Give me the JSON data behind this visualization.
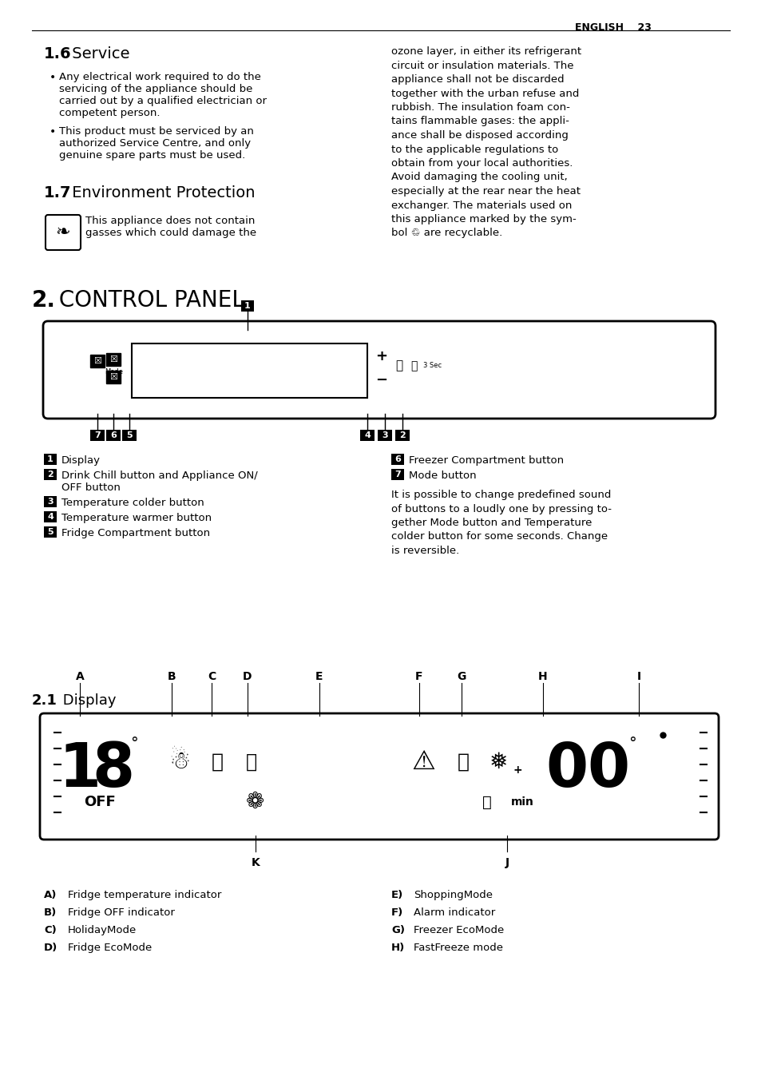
{
  "page_bg": "#ffffff",
  "header_right": "ENGLISH    23",
  "section_1_6_title_bold": "1.6",
  "section_1_6_title_normal": " Service",
  "section_1_6_bullets": [
    "Any electrical work required to do the\nservicing of the appliance should be\ncarried out by a qualified electrician or\ncompetent person.",
    "This product must be serviced by an\nauthorized Service Centre, and only\ngenuine spare parts must be used."
  ],
  "section_1_7_title_bold": "1.7",
  "section_1_7_title_normal": " Environment Protection",
  "section_1_7_icon_text": "This appliance does not contain\ngasses which could damage the",
  "right_col_text": "ozone layer, in either its refrigerant\ncircuit or insulation materials. The\nappliance shall not be discarded\ntogether with the urban refuse and\nrubbish. The insulation foam con-\ntains flammable gases: the appli-\nance shall be disposed according\nto the applicable regulations to\nobtain from your local authorities.\nAvoid damaging the cooling unit,\nespecially at the rear near the heat\nexchanger. The materials used on\nthis appliance marked by the sym-\nbol ♲ are recyclable.",
  "section_2_title_bold": "2.",
  "section_2_title_normal": " CONTROL PANEL",
  "numbered_items_left": [
    [
      "1",
      "Display"
    ],
    [
      "2",
      "Drink Chill button and Appliance ON/\nOFF button"
    ],
    [
      "3",
      "Temperature colder button"
    ],
    [
      "4",
      "Temperature warmer button"
    ],
    [
      "5",
      "Fridge Compartment button"
    ]
  ],
  "numbered_items_right": [
    [
      "6",
      "Freezer Compartment button"
    ],
    [
      "7",
      "Mode button"
    ]
  ],
  "panel_paragraph": "It is possible to change predefined sound\nof buttons to a loudly one by pressing to-\ngether Mode button and Temperature\ncolder button for some seconds. Change\nis reversible.",
  "section_2_1_title_bold": "2.1",
  "section_2_1_title_normal": " Display",
  "display_labels_top": [
    "A",
    "B",
    "C",
    "D",
    "E",
    "F",
    "G",
    "H",
    "I"
  ],
  "display_labels_bottom": [
    "K",
    "J"
  ],
  "legend_left": [
    [
      "A)",
      "Fridge temperature indicator"
    ],
    [
      "B)",
      "Fridge OFF indicator"
    ],
    [
      "C)",
      "HolidayMode"
    ],
    [
      "D)",
      "Fridge EcoMode"
    ]
  ],
  "legend_right": [
    [
      "E)",
      "ShoppingMode"
    ],
    [
      "F)",
      "Alarm indicator"
    ],
    [
      "G)",
      "Freezer EcoMode"
    ],
    [
      "H)",
      "FastFreeze mode"
    ]
  ],
  "font_size_body": 9.5,
  "font_size_title_section": 13,
  "font_size_header": 9,
  "text_color": "#000000"
}
